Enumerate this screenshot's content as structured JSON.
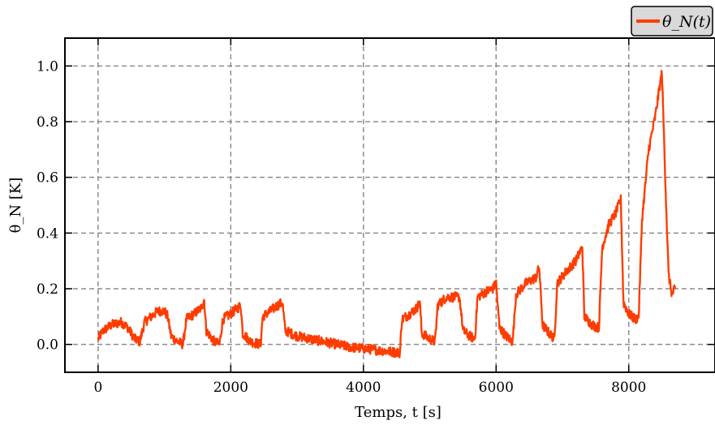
{
  "chart_data": {
    "type": "line",
    "title": "",
    "xlabel": "Temps, t [s]",
    "ylabel": "θ_N [K]",
    "xlim": [
      -500,
      9300
    ],
    "ylim": [
      -0.1,
      1.1
    ],
    "x_ticks": [
      0,
      2000,
      4000,
      6000,
      8000
    ],
    "x_tick_labels": [
      "0",
      "2000",
      "4000",
      "6000",
      "8000"
    ],
    "y_ticks": [
      0.0,
      0.2,
      0.4,
      0.6,
      0.8,
      1.0
    ],
    "y_tick_labels": [
      "0.0",
      "0.2",
      "0.4",
      "0.6",
      "0.8",
      "1.0"
    ],
    "grid": true,
    "legend_position": "top-right",
    "series": [
      {
        "name": "θ_N(t)",
        "color": "#ff3c00",
        "points": [
          [
            0,
            0.02
          ],
          [
            80,
            0.05
          ],
          [
            200,
            0.07
          ],
          [
            350,
            0.08
          ],
          [
            450,
            0.06
          ],
          [
            550,
            0.02
          ],
          [
            630,
            0.01
          ],
          [
            700,
            0.08
          ],
          [
            800,
            0.1
          ],
          [
            900,
            0.12
          ],
          [
            1000,
            0.12
          ],
          [
            1050,
            0.1
          ],
          [
            1100,
            0.03
          ],
          [
            1200,
            0.01
          ],
          [
            1280,
            0.0
          ],
          [
            1330,
            0.09
          ],
          [
            1450,
            0.11
          ],
          [
            1550,
            0.13
          ],
          [
            1600,
            0.16
          ],
          [
            1630,
            0.05
          ],
          [
            1750,
            0.01
          ],
          [
            1830,
            0.0
          ],
          [
            1880,
            0.09
          ],
          [
            2000,
            0.11
          ],
          [
            2100,
            0.13
          ],
          [
            2150,
            0.14
          ],
          [
            2180,
            0.04
          ],
          [
            2300,
            0.01
          ],
          [
            2450,
            0.0
          ],
          [
            2480,
            0.1
          ],
          [
            2600,
            0.12
          ],
          [
            2700,
            0.14
          ],
          [
            2780,
            0.15
          ],
          [
            2820,
            0.05
          ],
          [
            3000,
            0.03
          ],
          [
            3400,
            0.01
          ],
          [
            3800,
            -0.01
          ],
          [
            4200,
            -0.02
          ],
          [
            4550,
            -0.03
          ],
          [
            4580,
            0.09
          ],
          [
            4700,
            0.11
          ],
          [
            4800,
            0.13
          ],
          [
            4850,
            0.15
          ],
          [
            4880,
            0.04
          ],
          [
            5000,
            0.02
          ],
          [
            5080,
            0.01
          ],
          [
            5120,
            0.14
          ],
          [
            5250,
            0.17
          ],
          [
            5400,
            0.17
          ],
          [
            5450,
            0.17
          ],
          [
            5500,
            0.05
          ],
          [
            5600,
            0.03
          ],
          [
            5680,
            0.02
          ],
          [
            5720,
            0.17
          ],
          [
            5850,
            0.19
          ],
          [
            5950,
            0.2
          ],
          [
            6000,
            0.22
          ],
          [
            6050,
            0.06
          ],
          [
            6150,
            0.03
          ],
          [
            6250,
            0.01
          ],
          [
            6300,
            0.18
          ],
          [
            6450,
            0.22
          ],
          [
            6600,
            0.24
          ],
          [
            6650,
            0.28
          ],
          [
            6700,
            0.07
          ],
          [
            6800,
            0.04
          ],
          [
            6880,
            0.02
          ],
          [
            6920,
            0.22
          ],
          [
            7050,
            0.26
          ],
          [
            7200,
            0.3
          ],
          [
            7300,
            0.35
          ],
          [
            7330,
            0.1
          ],
          [
            7450,
            0.07
          ],
          [
            7550,
            0.06
          ],
          [
            7600,
            0.35
          ],
          [
            7700,
            0.43
          ],
          [
            7800,
            0.47
          ],
          [
            7880,
            0.52
          ],
          [
            7920,
            0.15
          ],
          [
            8000,
            0.11
          ],
          [
            8100,
            0.09
          ],
          [
            8150,
            0.1
          ],
          [
            8200,
            0.45
          ],
          [
            8300,
            0.7
          ],
          [
            8400,
            0.82
          ],
          [
            8450,
            0.9
          ],
          [
            8500,
            0.98
          ],
          [
            8550,
            0.6
          ],
          [
            8600,
            0.25
          ],
          [
            8650,
            0.18
          ],
          [
            8700,
            0.2
          ]
        ]
      }
    ]
  }
}
